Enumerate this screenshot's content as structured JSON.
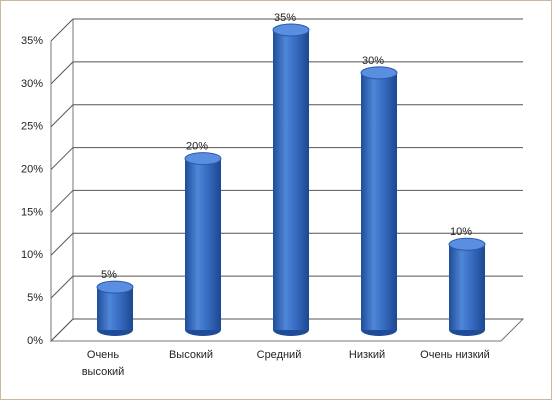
{
  "chart_data": {
    "type": "bar",
    "categories": [
      "Очень высокий",
      "Высокий",
      "Средний",
      "Низкий",
      "Очень низкий"
    ],
    "values": [
      5,
      20,
      35,
      30,
      10
    ],
    "value_labels": [
      "5%",
      "20%",
      "35%",
      "30%",
      "10%"
    ],
    "color": "#3a6fc4",
    "ylim": [
      0,
      35
    ],
    "yticks": [
      {
        "value": 0,
        "label": "0%"
      },
      {
        "value": 5,
        "label": "5%"
      },
      {
        "value": 10,
        "label": "10%"
      },
      {
        "value": 15,
        "label": "15%"
      },
      {
        "value": 20,
        "label": "20%"
      },
      {
        "value": 25,
        "label": "25%"
      },
      {
        "value": 30,
        "label": "30%"
      },
      {
        "value": 35,
        "label": "35%"
      }
    ],
    "grid": true
  }
}
